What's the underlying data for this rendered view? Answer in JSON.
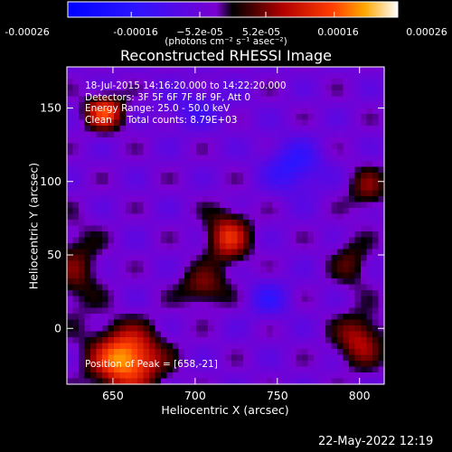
{
  "colorbar": {
    "ticks": [
      "-0.00026",
      "-0.00016",
      "−5.2e-05",
      "5.2e-05",
      "0.00016",
      "0.00026"
    ],
    "tick_values": [
      -0.00026,
      -0.00016,
      -5.2e-05,
      5.2e-05,
      0.00016,
      0.00026
    ],
    "range": [
      -0.00026,
      0.00026
    ],
    "units": "(photons cm⁻² s⁻¹ asec⁻²)"
  },
  "info": {
    "time_range": "18-Jul-2015 14:16:20.000 to 14:22:20.000",
    "detectors": "Detectors: 3F 5F 6F 7F 8F 9F, Att 0",
    "energy": "Energy Range: 25.0 - 50.0 keV",
    "clean": "Clean     Total counts: 8.79E+03",
    "peak": "Position of Peak = [658,-21]"
  },
  "footer": {
    "date": "22-May-2022 12:19"
  },
  "chart_data": {
    "type": "heatmap",
    "title": "Reconstructed RHESSI Image",
    "xlabel": "Heliocentric X (arcsec)",
    "ylabel": "Heliocentric Y (arcsec)",
    "xlim": [
      622,
      815
    ],
    "ylim": [
      -38,
      178
    ],
    "xticks": [
      650,
      700,
      750,
      800
    ],
    "xtick_labels": [
      "650",
      "700",
      "750",
      "800"
    ],
    "yticks": [
      0,
      50,
      100,
      150
    ],
    "ytick_labels": [
      "0",
      "50",
      "100",
      "150"
    ],
    "zlim": [
      -0.00026,
      0.00026
    ],
    "peak": [
      658,
      -21
    ],
    "sources": [
      {
        "x": 658,
        "y": -21,
        "sx": 14,
        "sy": 14,
        "amp": 0.00026
      },
      {
        "x": 645,
        "y": 147,
        "sx": 8,
        "sy": 8,
        "amp": 0.00019
      },
      {
        "x": 720,
        "y": 62,
        "sx": 9,
        "sy": 12,
        "amp": 0.00016
      },
      {
        "x": 705,
        "y": 28,
        "sx": 10,
        "sy": 9,
        "amp": 0.0001
      },
      {
        "x": 628,
        "y": 40,
        "sx": 10,
        "sy": 20,
        "amp": 8e-05
      },
      {
        "x": 800,
        "y": -8,
        "sx": 10,
        "sy": 12,
        "amp": 0.00013
      },
      {
        "x": 805,
        "y": 95,
        "sx": 8,
        "sy": 10,
        "amp": 9e-05
      },
      {
        "x": 795,
        "y": 45,
        "sx": 8,
        "sy": 12,
        "amp": 7e-05
      },
      {
        "x": 760,
        "y": 110,
        "sx": 12,
        "sy": 12,
        "amp": -0.00011
      },
      {
        "x": 745,
        "y": 20,
        "sx": 9,
        "sy": 9,
        "amp": -8e-05
      },
      {
        "x": 700,
        "y": 150,
        "sx": 14,
        "sy": 10,
        "amp": -6e-05
      }
    ],
    "background": -4.5e-05
  }
}
